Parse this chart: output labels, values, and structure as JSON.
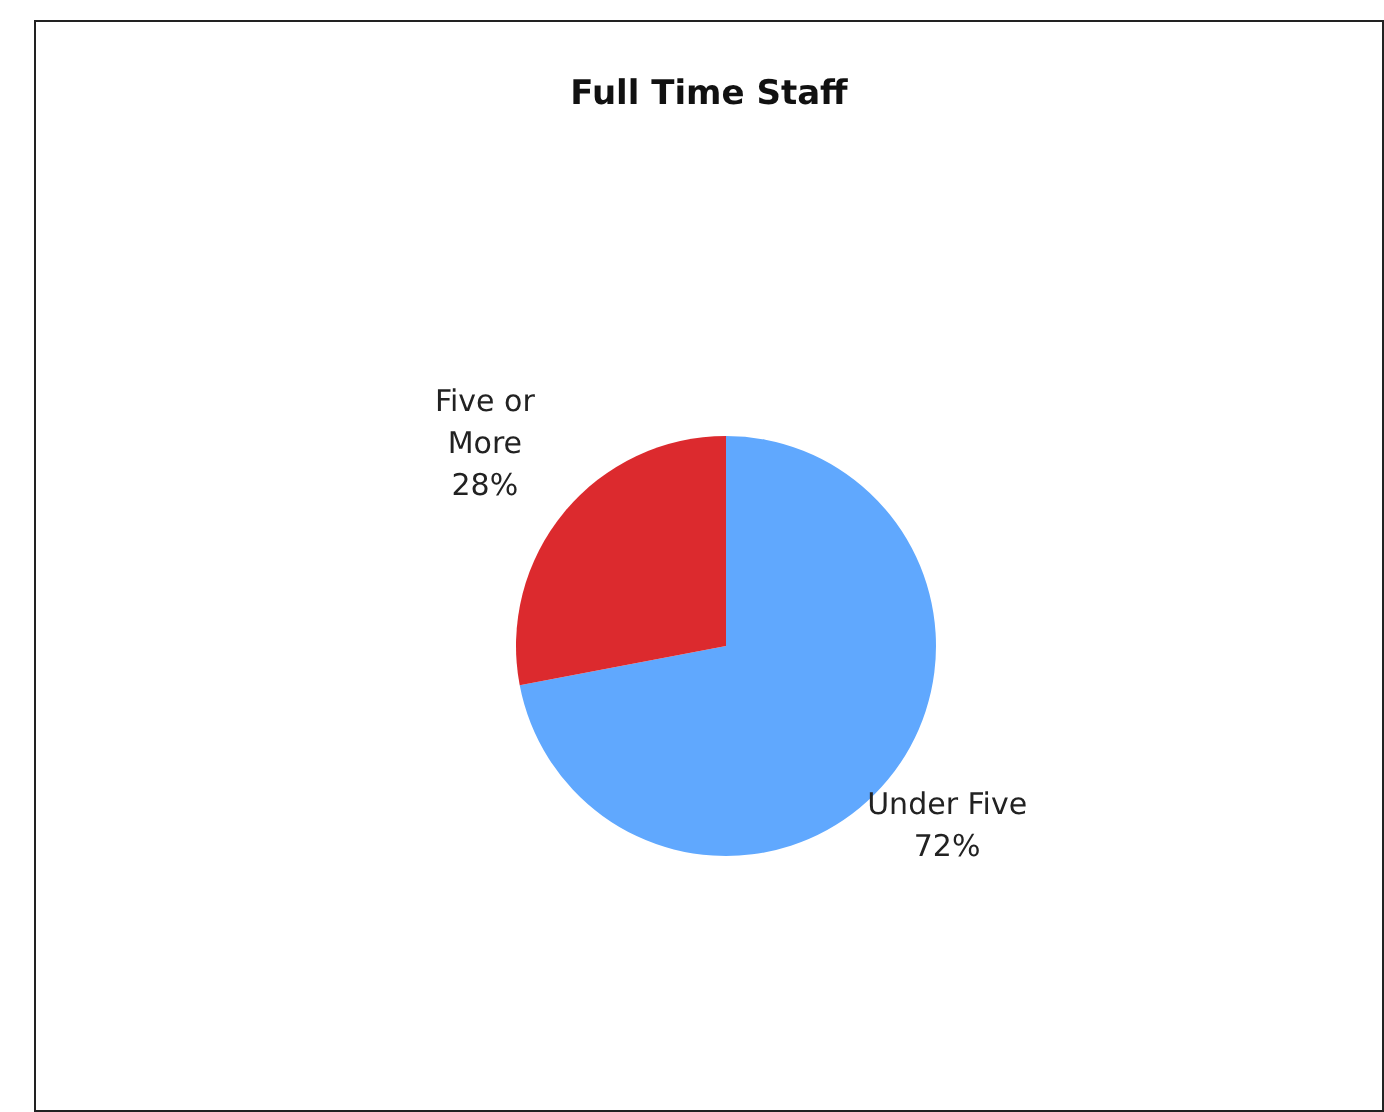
{
  "chart_data": {
    "type": "pie",
    "title": "Full Time Staff",
    "categories": [
      "Under Five",
      "Five or More"
    ],
    "values": [
      72,
      28
    ],
    "colors": [
      "#60a8fe",
      "#dc2a2e"
    ],
    "value_labels": [
      "72%",
      "28%"
    ]
  }
}
